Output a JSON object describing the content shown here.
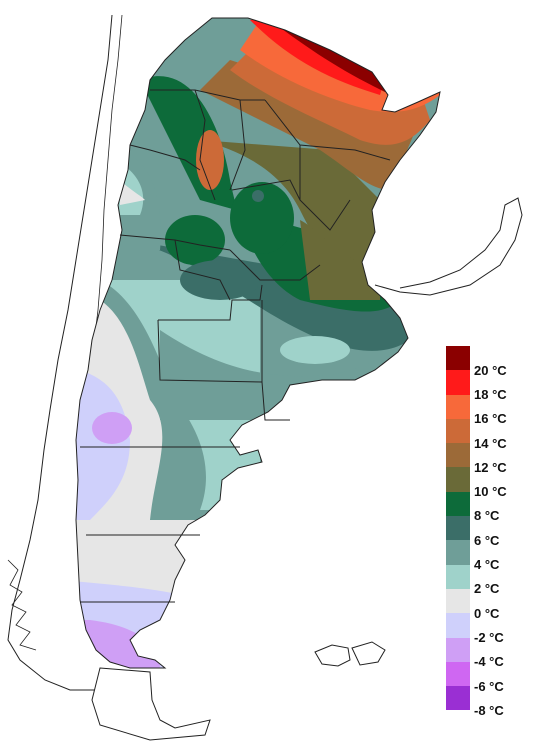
{
  "legend": {
    "items": [
      {
        "label": "20 °C",
        "color": "#8b0000"
      },
      {
        "label": "18 °C",
        "color": "#ff1a1a"
      },
      {
        "label": "16 °C",
        "color": "#f7693a"
      },
      {
        "label": "14 °C",
        "color": "#cc6a38"
      },
      {
        "label": "12 °C",
        "color": "#9c6a38"
      },
      {
        "label": "10 °C",
        "color": "#6a6a38"
      },
      {
        "label": "8 °C",
        "color": "#0d6b3a"
      },
      {
        "label": "6 °C",
        "color": "#3b6e68"
      },
      {
        "label": "4 °C",
        "color": "#6f9e98"
      },
      {
        "label": "2 °C",
        "color": "#9fd2ca"
      },
      {
        "label": "0 °C",
        "color": "#e6e6e6"
      },
      {
        "label": "-2 °C",
        "color": "#cfd0fb"
      },
      {
        "label": "-4 °C",
        "color": "#cf9ff5"
      },
      {
        "label": "-6 °C",
        "color": "#cf67f2"
      },
      {
        "label": "-8 °C",
        "color": "#9a2fd3"
      }
    ]
  }
}
